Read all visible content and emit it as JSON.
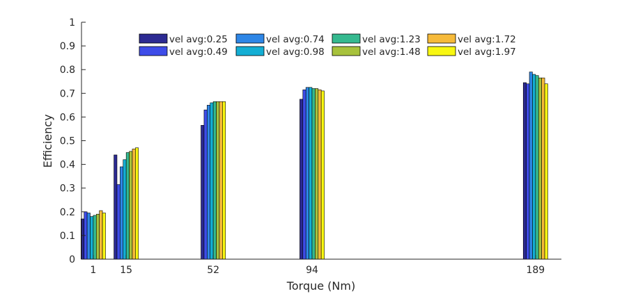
{
  "chart_data": {
    "type": "bar",
    "xlabel": "Torque (Nm)",
    "ylabel": "Efficiency",
    "ylim": [
      0,
      1
    ],
    "yticks": [
      "0",
      "0.1",
      "0.2",
      "0.3",
      "0.4",
      "0.5",
      "0.6",
      "0.7",
      "0.8",
      "0.9",
      "1"
    ],
    "x": [
      1,
      15,
      52,
      94,
      189
    ],
    "x_tick_labels": [
      "1",
      "15",
      "52",
      "94",
      "189"
    ],
    "xlim": [
      -4,
      200
    ],
    "grid": false,
    "legend_position": "top",
    "series": [
      {
        "name": "vel avg:0.25",
        "color": "#2c2a92",
        "values": [
          0.17,
          0.44,
          0.565,
          0.675,
          0.745
        ]
      },
      {
        "name": "vel avg:0.49",
        "color": "#3e4ce8",
        "values": [
          0.2,
          0.315,
          0.63,
          0.715,
          0.74
        ]
      },
      {
        "name": "vel avg:0.74",
        "color": "#2e86e6",
        "values": [
          0.195,
          0.39,
          0.65,
          0.725,
          0.79
        ]
      },
      {
        "name": "vel avg:0.98",
        "color": "#14aed4",
        "values": [
          0.18,
          0.42,
          0.66,
          0.725,
          0.78
        ]
      },
      {
        "name": "vel avg:1.23",
        "color": "#35b98f",
        "values": [
          0.185,
          0.45,
          0.665,
          0.72,
          0.775
        ]
      },
      {
        "name": "vel avg:1.48",
        "color": "#a7c23c",
        "values": [
          0.19,
          0.455,
          0.665,
          0.72,
          0.765
        ]
      },
      {
        "name": "vel avg:1.72",
        "color": "#f6ba3a",
        "values": [
          0.205,
          0.465,
          0.665,
          0.715,
          0.765
        ]
      },
      {
        "name": "vel avg:1.97",
        "color": "#f8f712",
        "values": [
          0.195,
          0.47,
          0.665,
          0.71,
          0.74
        ]
      }
    ]
  }
}
